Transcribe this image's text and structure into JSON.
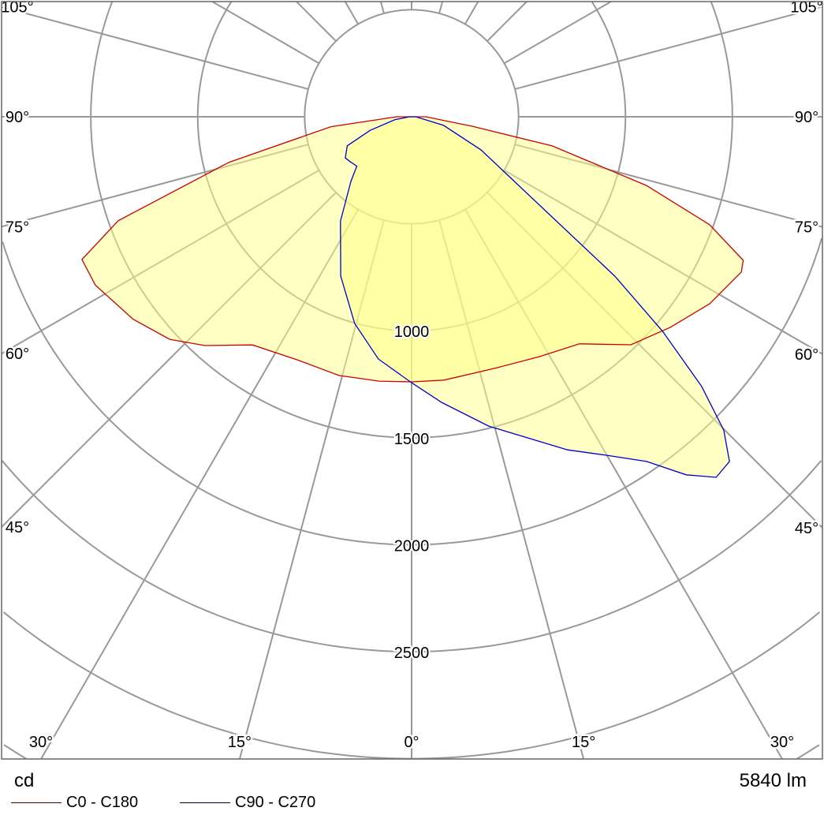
{
  "chart_data": {
    "type": "polar",
    "unit_label": "cd",
    "flux_label": "5840 lm",
    "radial_ticks": [
      1000,
      1500,
      2000,
      2500
    ],
    "radial_grid_step": 500,
    "angle_labels": [
      "0°",
      "15°",
      "30°",
      "45°",
      "60°",
      "75°",
      "90°",
      "105°"
    ],
    "angle_grid_step": 15,
    "grid": true,
    "legend_placement": "bottom-left",
    "colors": {
      "c0": "#cc0000",
      "c90": "#0000cc",
      "fill": "#ffff88",
      "grid": "#999999"
    },
    "series": [
      {
        "name": "C0 - C180",
        "legend_color": "#550000",
        "points": [
          [
            -90,
            70
          ],
          [
            -83,
            380
          ],
          [
            -76,
            880
          ],
          [
            -70.5,
            1455
          ],
          [
            -66.6,
            1680
          ],
          [
            -62,
            1675
          ],
          [
            -54,
            1610
          ],
          [
            -47.4,
            1537
          ],
          [
            -42.1,
            1441
          ],
          [
            -34.9,
            1300
          ],
          [
            -25,
            1255
          ],
          [
            -15.7,
            1256
          ],
          [
            -7,
            1245
          ],
          [
            0,
            1239
          ],
          [
            7,
            1240
          ],
          [
            18.8,
            1239
          ],
          [
            28,
            1270
          ],
          [
            36.5,
            1320
          ],
          [
            43.9,
            1479
          ],
          [
            50.9,
            1560
          ],
          [
            57.9,
            1645
          ],
          [
            64.8,
            1704
          ],
          [
            66.6,
            1690
          ],
          [
            70.1,
            1482
          ],
          [
            73.7,
            1144
          ],
          [
            78.3,
            671
          ],
          [
            81,
            291
          ],
          [
            90,
            66
          ]
        ]
      },
      {
        "name": "C90 - C270",
        "legend_color": "#000022",
        "points": [
          [
            -90,
            10
          ],
          [
            -80,
            80
          ],
          [
            -71.9,
            205
          ],
          [
            -65.7,
            330
          ],
          [
            -58.2,
            365
          ],
          [
            -53.5,
            355
          ],
          [
            -48,
            345
          ],
          [
            -43.2,
            415
          ],
          [
            -34.3,
            590
          ],
          [
            -24,
            815
          ],
          [
            -15.4,
            1002
          ],
          [
            -7.8,
            1143
          ],
          [
            0,
            1243
          ],
          [
            6,
            1342
          ],
          [
            14,
            1490
          ],
          [
            25.1,
            1719
          ],
          [
            30,
            1827
          ],
          [
            34.3,
            1950
          ],
          [
            37.5,
            2109
          ],
          [
            40.2,
            2206
          ],
          [
            42.7,
            2192
          ],
          [
            44.9,
            2068
          ],
          [
            47.1,
            1852
          ],
          [
            49.5,
            1543
          ],
          [
            51.9,
            1208
          ],
          [
            54.5,
            806
          ],
          [
            64.5,
            359
          ],
          [
            75,
            155
          ],
          [
            90,
            20
          ]
        ]
      }
    ]
  }
}
